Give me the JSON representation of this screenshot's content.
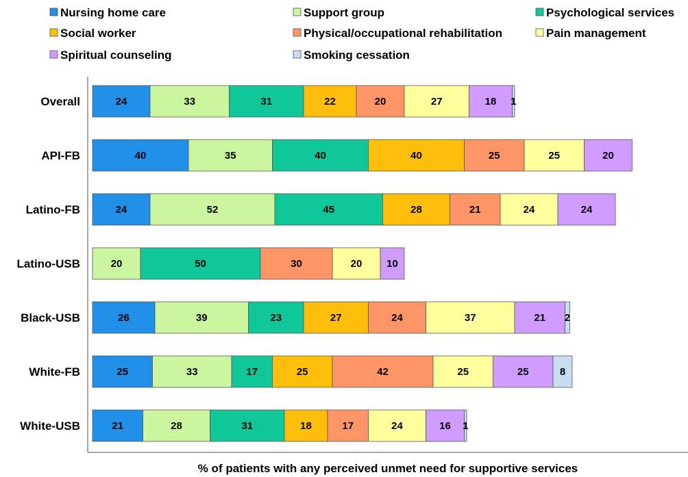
{
  "chart_data": {
    "type": "bar",
    "orientation": "horizontal",
    "stacked": true,
    "xlabel": "% of patients with any perceived unmet need for supportive services",
    "legend_position": "top",
    "grid": false,
    "categories": [
      "Overall",
      "API-FB",
      "Latino-FB",
      "Latino-USB",
      "Black-USB",
      "White-FB",
      "White-USB"
    ],
    "series": [
      {
        "name": "Nursing home care",
        "color": "#1f8fe8",
        "values": [
          24,
          40,
          24,
          0,
          26,
          25,
          21
        ]
      },
      {
        "name": "Support group",
        "color": "#ccf5a0",
        "values": [
          33,
          35,
          52,
          20,
          39,
          33,
          28
        ]
      },
      {
        "name": "Psychological services",
        "color": "#10c79a",
        "values": [
          31,
          40,
          45,
          50,
          23,
          17,
          31
        ]
      },
      {
        "name": "Social worker",
        "color": "#ffbe0a",
        "values": [
          22,
          40,
          28,
          0,
          27,
          25,
          18
        ]
      },
      {
        "name": "Physical/occupational rehabilitation",
        "color": "#ff9466",
        "values": [
          20,
          25,
          21,
          30,
          24,
          42,
          17
        ]
      },
      {
        "name": "Pain management",
        "color": "#ffff9e",
        "values": [
          27,
          25,
          24,
          20,
          37,
          25,
          24
        ]
      },
      {
        "name": "Spiritual counseling",
        "color": "#d09cff",
        "values": [
          18,
          20,
          24,
          10,
          21,
          25,
          16
        ]
      },
      {
        "name": "Smoking cessation",
        "color": "#c8ddf0",
        "values": [
          1,
          0,
          0,
          0,
          2,
          8,
          1
        ]
      }
    ]
  }
}
